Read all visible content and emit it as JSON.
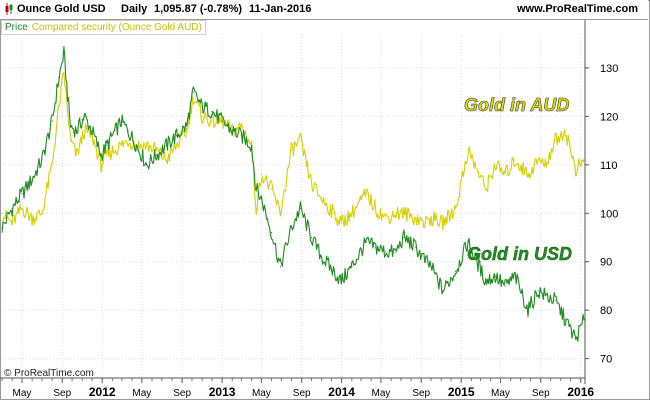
{
  "header": {
    "instrument": "Ounce Gold USD",
    "period": "Daily",
    "price": "1,095.87 (-0.78%)",
    "date": "11-Jan-2016",
    "website": "www.ProRealTime.com"
  },
  "legend": {
    "price_label": "Price",
    "compared_label": "Compared security (Ounce Gold AUD)"
  },
  "copyright": "© ProRealTime.com",
  "colors": {
    "usd": "#1f8a1f",
    "aud": "#d7cf00",
    "annotation_usd": "#1f8f1f",
    "annotation_aud": "#e4e000",
    "grid": "#dcdcdc"
  },
  "chart_data": {
    "type": "line",
    "x_tick_labels": [
      "May",
      "Sep",
      "2012",
      "May",
      "Sep",
      "2013",
      "May",
      "Sep",
      "2014",
      "May",
      "Sep",
      "2015",
      "May",
      "Sep",
      "2016"
    ],
    "y_ticks": [
      70,
      80,
      90,
      100,
      110,
      120,
      130
    ],
    "ylim": [
      66,
      137
    ],
    "y_axis_side": "right",
    "grid": true,
    "annotations": [
      {
        "text": "Gold in AUD",
        "series": "Ounce Gold AUD"
      },
      {
        "text": "Gold in USD",
        "series": "Ounce Gold USD"
      }
    ],
    "series": [
      {
        "name": "Ounce Gold USD",
        "color": "#1f8a1f",
        "x": [
          "2011-03-01",
          "2011-04-01",
          "2011-05-01",
          "2011-06-01",
          "2011-07-01",
          "2011-08-01",
          "2011-08-22",
          "2011-09-06",
          "2011-09-26",
          "2011-10-15",
          "2011-11-08",
          "2011-12-01",
          "2011-12-29",
          "2012-01-15",
          "2012-02-28",
          "2012-03-20",
          "2012-04-15",
          "2012-05-16",
          "2012-06-15",
          "2012-07-15",
          "2012-08-15",
          "2012-09-15",
          "2012-10-05",
          "2012-11-01",
          "2012-12-01",
          "2013-01-01",
          "2013-02-01",
          "2013-03-01",
          "2013-04-01",
          "2013-04-15",
          "2013-05-01",
          "2013-06-01",
          "2013-06-28",
          "2013-08-01",
          "2013-08-28",
          "2013-10-01",
          "2013-11-01",
          "2013-12-31",
          "2014-02-01",
          "2014-03-17",
          "2014-04-15",
          "2014-05-15",
          "2014-06-15",
          "2014-07-10",
          "2014-08-15",
          "2014-09-15",
          "2014-10-01",
          "2014-11-06",
          "2014-12-15",
          "2015-01-22",
          "2015-03-17",
          "2015-04-15",
          "2015-05-15",
          "2015-06-15",
          "2015-07-24",
          "2015-08-24",
          "2015-09-15",
          "2015-10-15",
          "2015-11-15",
          "2015-12-17",
          "2016-01-11"
        ],
        "y": [
          97,
          101,
          104,
          107,
          111,
          119,
          128,
          133,
          118,
          117,
          120,
          117,
          112,
          114,
          119,
          117,
          114,
          110,
          112,
          114,
          116,
          118,
          125,
          122,
          121,
          119,
          117,
          116,
          114,
          105,
          103,
          96,
          89,
          97,
          101,
          95,
          91,
          86,
          89,
          94,
          93,
          92,
          92,
          95,
          93,
          90,
          89,
          84,
          88,
          94,
          86,
          87,
          85,
          87,
          80,
          84,
          83,
          82,
          78,
          74,
          78
        ]
      },
      {
        "name": "Ounce Gold AUD",
        "color": "#d7cf00",
        "x": [
          "2011-03-01",
          "2011-04-01",
          "2011-05-01",
          "2011-06-01",
          "2011-07-01",
          "2011-08-01",
          "2011-08-22",
          "2011-09-06",
          "2011-09-26",
          "2011-10-15",
          "2011-11-08",
          "2011-12-01",
          "2011-12-29",
          "2012-01-15",
          "2012-02-28",
          "2012-03-20",
          "2012-04-15",
          "2012-05-16",
          "2012-06-15",
          "2012-07-15",
          "2012-08-15",
          "2012-09-15",
          "2012-10-05",
          "2012-11-01",
          "2012-12-01",
          "2013-01-01",
          "2013-02-01",
          "2013-03-01",
          "2013-04-01",
          "2013-04-15",
          "2013-05-01",
          "2013-06-01",
          "2013-06-28",
          "2013-08-01",
          "2013-08-28",
          "2013-10-01",
          "2013-11-01",
          "2013-12-31",
          "2014-02-01",
          "2014-03-17",
          "2014-04-15",
          "2014-05-15",
          "2014-06-15",
          "2014-07-10",
          "2014-08-15",
          "2014-09-15",
          "2014-10-01",
          "2014-11-06",
          "2014-12-15",
          "2015-01-22",
          "2015-03-17",
          "2015-04-15",
          "2015-05-15",
          "2015-06-15",
          "2015-07-24",
          "2015-08-24",
          "2015-09-15",
          "2015-10-15",
          "2015-11-15",
          "2015-12-17",
          "2016-01-11"
        ],
        "y": [
          100,
          98,
          101,
          99,
          100,
          110,
          122,
          129,
          115,
          112,
          117,
          116,
          110,
          112,
          114,
          115,
          114,
          114,
          113,
          111,
          114,
          117,
          124,
          120,
          119,
          119,
          117,
          118,
          114,
          101,
          108,
          105,
          100,
          113,
          115,
          106,
          103,
          98,
          100,
          104,
          101,
          99,
          100,
          100,
          99,
          98,
          99,
          98,
          101,
          113,
          105,
          110,
          108,
          111,
          108,
          111,
          110,
          115,
          117,
          109,
          111
        ]
      }
    ]
  }
}
